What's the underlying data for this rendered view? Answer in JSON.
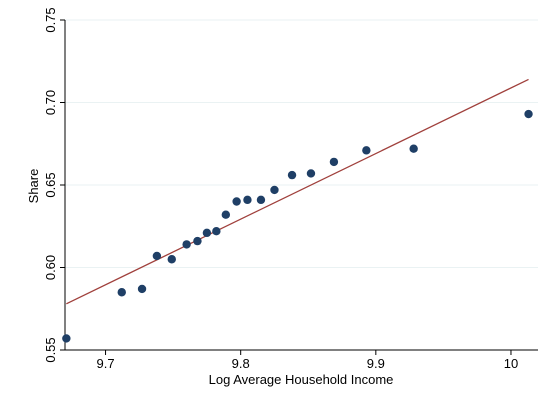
{
  "chart_data": {
    "type": "scatter",
    "xlabel": "Log Average Household Income",
    "ylabel": "Share",
    "xlim": [
      9.67,
      10.02
    ],
    "ylim": [
      0.55,
      0.75
    ],
    "x_ticks": [
      9.7,
      9.8,
      9.9,
      10
    ],
    "x_tick_labels": [
      "9.7",
      "9.8",
      "9.9",
      "10"
    ],
    "y_ticks": [
      0.55,
      0.6,
      0.65,
      0.7,
      0.75
    ],
    "y_tick_labels": [
      "0.55",
      "0.60",
      "0.65",
      "0.70",
      "0.75"
    ],
    "grid": true,
    "colors": {
      "points": "#1f3f66",
      "fit_line": "#a0403c"
    },
    "points": [
      {
        "x": 9.671,
        "y": 0.557
      },
      {
        "x": 9.712,
        "y": 0.585
      },
      {
        "x": 9.727,
        "y": 0.587
      },
      {
        "x": 9.738,
        "y": 0.607
      },
      {
        "x": 9.749,
        "y": 0.605
      },
      {
        "x": 9.76,
        "y": 0.614
      },
      {
        "x": 9.768,
        "y": 0.616
      },
      {
        "x": 9.775,
        "y": 0.621
      },
      {
        "x": 9.782,
        "y": 0.622
      },
      {
        "x": 9.789,
        "y": 0.632
      },
      {
        "x": 9.797,
        "y": 0.64
      },
      {
        "x": 9.805,
        "y": 0.641
      },
      {
        "x": 9.815,
        "y": 0.641
      },
      {
        "x": 9.825,
        "y": 0.647
      },
      {
        "x": 9.838,
        "y": 0.656
      },
      {
        "x": 9.852,
        "y": 0.657
      },
      {
        "x": 9.869,
        "y": 0.664
      },
      {
        "x": 9.893,
        "y": 0.671
      },
      {
        "x": 9.928,
        "y": 0.672
      },
      {
        "x": 10.013,
        "y": 0.693
      }
    ],
    "fit_line": [
      {
        "x": 9.671,
        "y": 0.578
      },
      {
        "x": 10.013,
        "y": 0.714
      }
    ]
  }
}
